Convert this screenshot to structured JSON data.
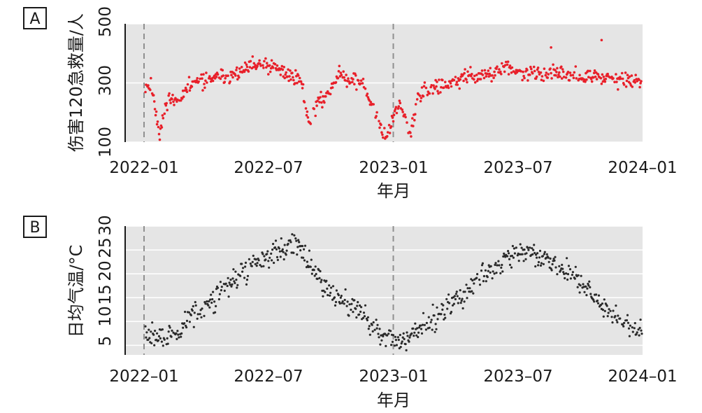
{
  "chart_data": [
    {
      "type": "scatter",
      "panel_label": "A",
      "ylabel": "伤害120急救量/人",
      "xlabel": "年月",
      "x_ticks": [
        "2022–01",
        "2022–07",
        "2023–01",
        "2023–07",
        "2024–01"
      ],
      "y_ticks": [
        "100",
        "300",
        "500"
      ],
      "ylim": [
        100,
        500
      ],
      "xlim": [
        "2022-01-01",
        "2024-01-01"
      ],
      "reference_lines": [
        "2022-01-01",
        "2023-01-01"
      ],
      "grid": true,
      "background": "#e5e5e5",
      "point_color": "#e8202a",
      "series_monthly": {
        "month": [
          "2022-01",
          "2022-02",
          "2022-03",
          "2022-04",
          "2022-05",
          "2022-06",
          "2022-07",
          "2022-08",
          "2022-09",
          "2022-10",
          "2022-11",
          "2022-12",
          "2023-01",
          "2023-02",
          "2023-03",
          "2023-04",
          "2023-05",
          "2023-06",
          "2023-07",
          "2023-08",
          "2023-09",
          "2023-10",
          "2023-11",
          "2023-12"
        ],
        "value": [
          290,
          235,
          300,
          315,
          330,
          360,
          345,
          315,
          230,
          330,
          300,
          150,
          230,
          265,
          290,
          320,
          330,
          345,
          330,
          330,
          325,
          320,
          315,
          305
        ]
      },
      "dips": [
        {
          "date": "2022-01-24",
          "value": 130
        },
        {
          "date": "2022-09-01",
          "value": 160
        },
        {
          "date": "2022-12-22",
          "value": 120
        },
        {
          "date": "2023-01-25",
          "value": 125
        }
      ],
      "highlights": [
        {
          "date": "2023-08-20",
          "value": 420
        },
        {
          "date": "2023-11-02",
          "value": 445
        }
      ]
    },
    {
      "type": "scatter",
      "panel_label": "B",
      "ylabel": "日均气温/°C",
      "xlabel": "年月",
      "x_ticks": [
        "2022–01",
        "2022–07",
        "2023–01",
        "2023–07",
        "2024–01"
      ],
      "y_ticks": [
        "5",
        "10",
        "15",
        "20",
        "25",
        "30"
      ],
      "ylim": [
        3,
        30
      ],
      "xlim": [
        "2022-01-01",
        "2024-01-01"
      ],
      "reference_lines": [
        "2022-01-01",
        "2023-01-01"
      ],
      "grid": true,
      "background": "#e5e5e5",
      "point_color": "#2a2a2a",
      "series_monthly": {
        "month": [
          "2022-01",
          "2022-02",
          "2022-03",
          "2022-04",
          "2022-05",
          "2022-06",
          "2022-07",
          "2022-08",
          "2022-09",
          "2022-10",
          "2022-11",
          "2022-12",
          "2023-01",
          "2023-02",
          "2023-03",
          "2023-04",
          "2023-05",
          "2023-06",
          "2023-07",
          "2023-08",
          "2023-09",
          "2023-10",
          "2023-11",
          "2023-12"
        ],
        "value": [
          7,
          6.5,
          12,
          15,
          19,
          23,
          25,
          26,
          19,
          15,
          12,
          6.5,
          6,
          9,
          12,
          16,
          20,
          23,
          24.5,
          23,
          20,
          16,
          12,
          8
        ]
      }
    }
  ]
}
